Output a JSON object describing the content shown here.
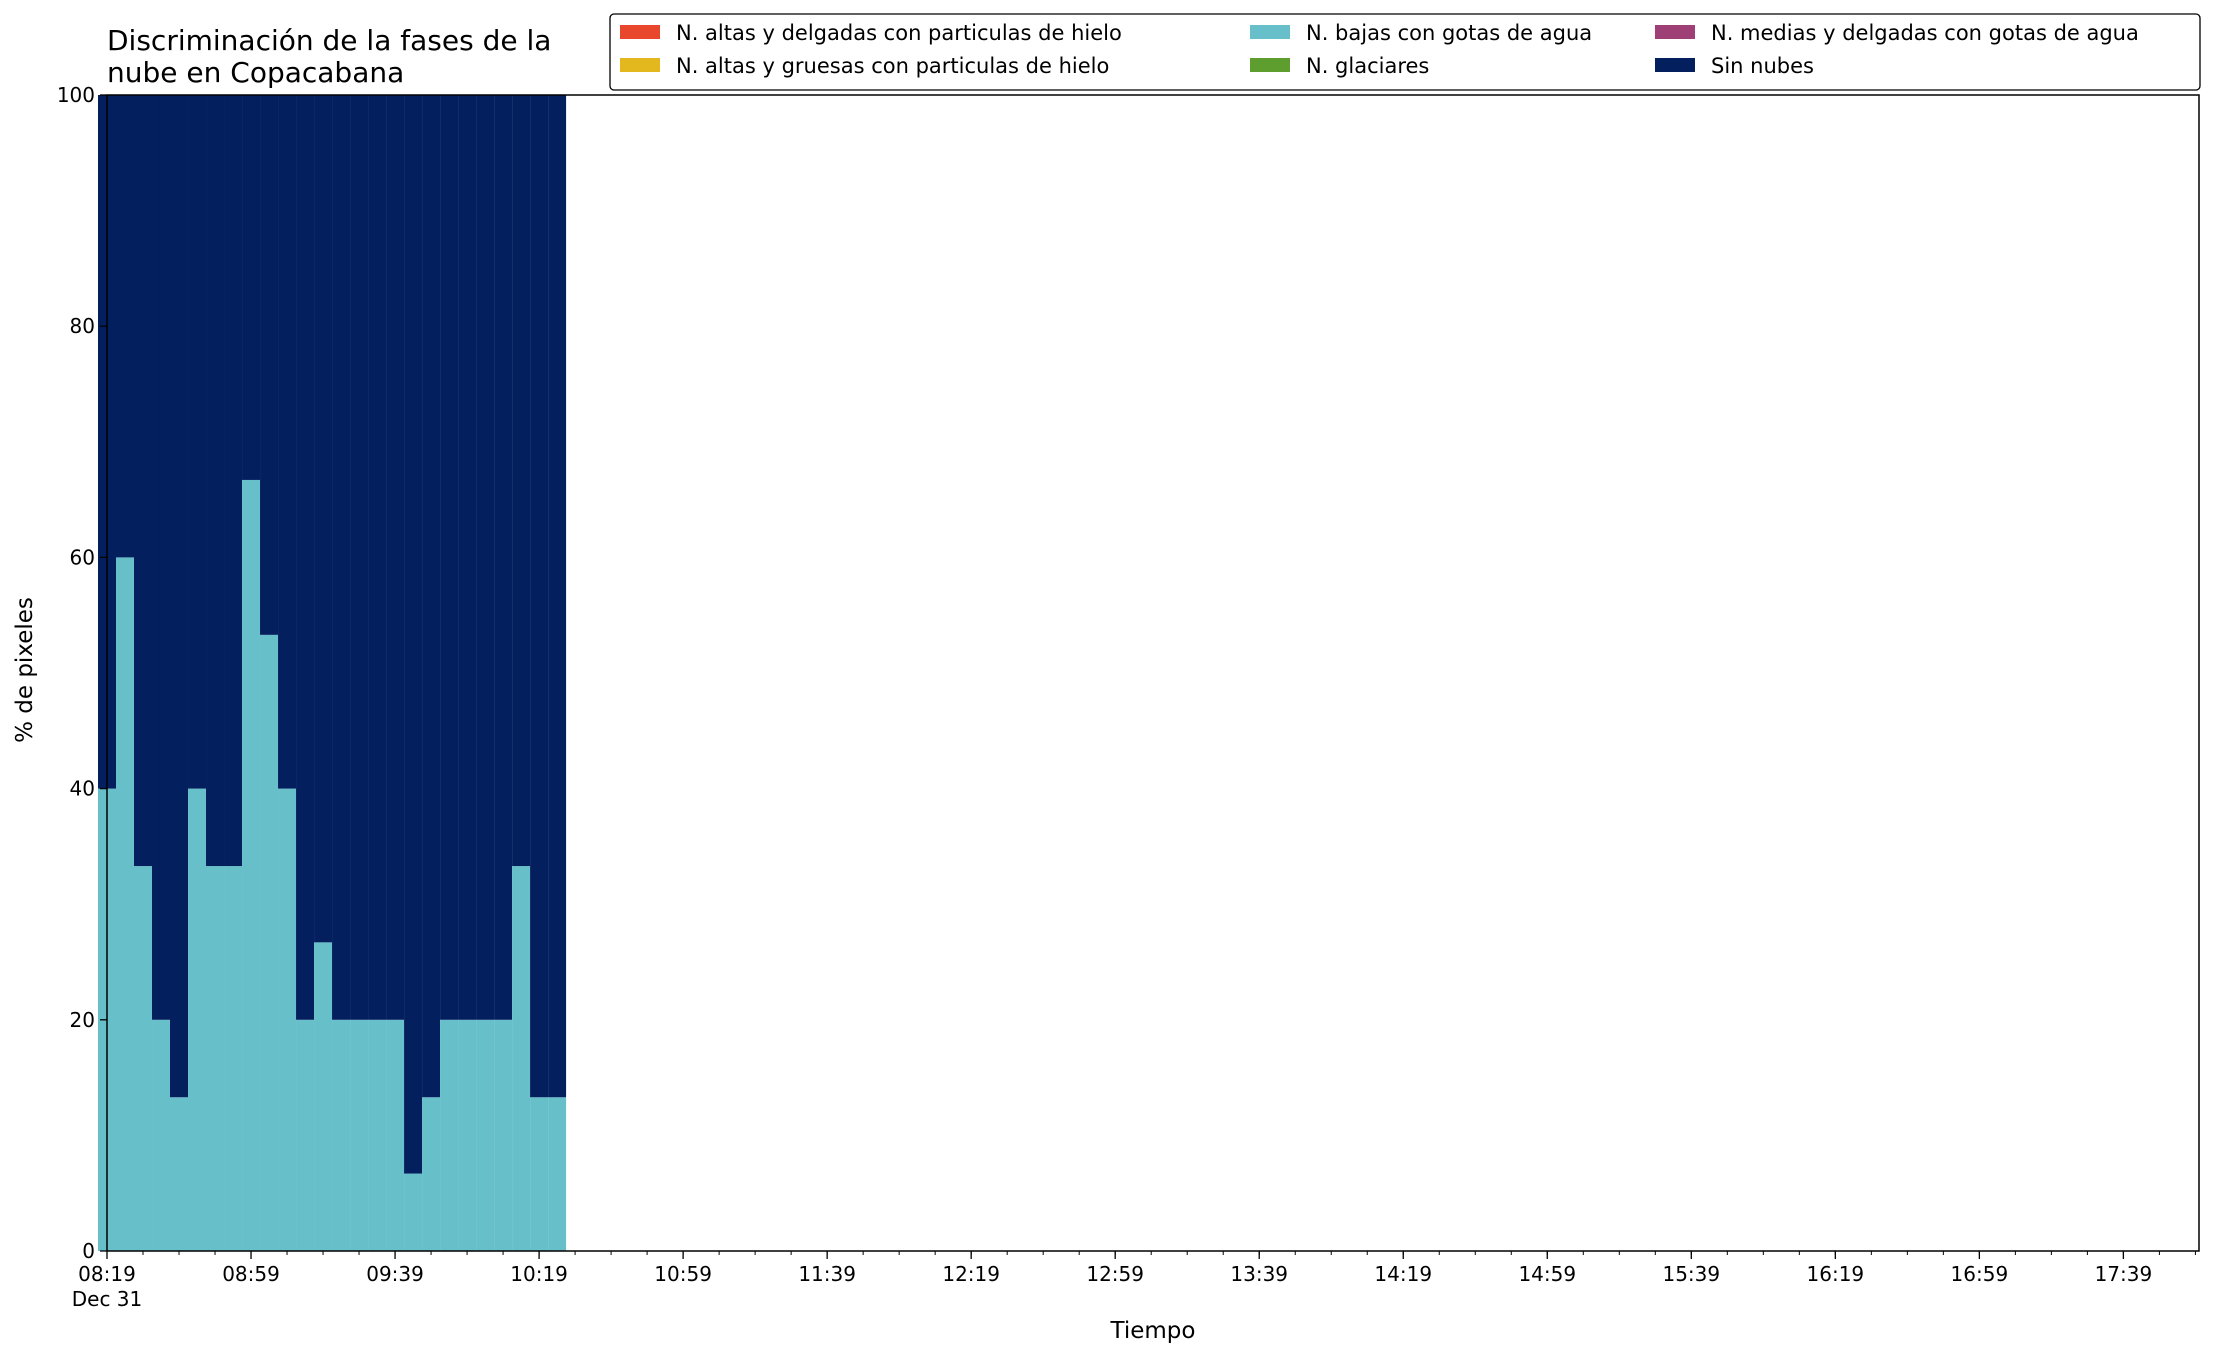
{
  "chart_data": {
    "type": "bar",
    "stacked": true,
    "title": "Discriminación de la fases de la\nnube en Copacabana",
    "xlabel": "Tiempo",
    "ylabel": "% de pixeles",
    "ylim": [
      0,
      100
    ],
    "yticks": [
      "0",
      "20",
      "40",
      "60",
      "80",
      "100"
    ],
    "xlim": [
      "08:19",
      "18:00"
    ],
    "xtick_labels": [
      "08:19",
      "08:59",
      "09:39",
      "10:19",
      "10:59",
      "11:39",
      "12:19",
      "12:59",
      "13:39",
      "14:19",
      "14:59",
      "15:39",
      "16:19",
      "16:59",
      "17:39"
    ],
    "xtick_date_label": "Dec 31",
    "minor_tick_interval_minutes": 10,
    "grid": false,
    "legend_position": "top-right",
    "x": [
      "08:19",
      "08:24",
      "08:29",
      "08:34",
      "08:39",
      "08:44",
      "08:49",
      "08:54",
      "08:59",
      "09:04",
      "09:09",
      "09:14",
      "09:19",
      "09:24",
      "09:29",
      "09:34",
      "09:39",
      "09:44",
      "09:49",
      "09:54",
      "09:59",
      "10:04",
      "10:09",
      "10:14",
      "10:19",
      "10:24"
    ],
    "series": [
      {
        "name": "N. altas y delgadas con particulas de hielo",
        "color": "#e8472b",
        "values": [
          0,
          0,
          0,
          0,
          0,
          0,
          0,
          0,
          0,
          0,
          0,
          0,
          0,
          0,
          0,
          0,
          0,
          0,
          0,
          0,
          0,
          0,
          0,
          0,
          0,
          0
        ]
      },
      {
        "name": "N. altas y gruesas con particulas de hielo",
        "color": "#e3b81f",
        "values": [
          0,
          0,
          0,
          0,
          0,
          0,
          0,
          0,
          0,
          0,
          0,
          0,
          0,
          0,
          0,
          0,
          0,
          0,
          0,
          0,
          0,
          0,
          0,
          0,
          0,
          0
        ]
      },
      {
        "name": "N. bajas con gotas de agua",
        "color": "#67bfca",
        "values": [
          40,
          60,
          33.3,
          20,
          13.3,
          40,
          33.3,
          33.3,
          66.7,
          53.3,
          40,
          20,
          26.7,
          20,
          20,
          20,
          20,
          6.7,
          13.3,
          20,
          20,
          20,
          20,
          33.3,
          13.3,
          13.3
        ]
      },
      {
        "name": "N. glaciares",
        "color": "#5e9e2f",
        "values": [
          0,
          0,
          0,
          0,
          0,
          0,
          0,
          0,
          0,
          0,
          0,
          0,
          0,
          0,
          0,
          0,
          0,
          0,
          0,
          0,
          0,
          0,
          0,
          0,
          0,
          0
        ]
      },
      {
        "name": "N. medias y delgadas con gotas de agua",
        "color": "#9e3f76",
        "values": [
          0,
          0,
          0,
          0,
          0,
          0,
          0,
          0,
          0,
          0,
          0,
          0,
          0,
          0,
          0,
          0,
          0,
          0,
          0,
          0,
          0,
          0,
          0,
          0,
          0,
          0
        ]
      },
      {
        "name": "Sin nubes",
        "color": "#041f5e",
        "values": [
          60,
          40,
          66.7,
          80,
          86.7,
          60,
          66.7,
          66.7,
          33.3,
          46.7,
          60,
          80,
          73.3,
          80,
          80,
          80,
          80,
          93.3,
          86.7,
          80,
          80,
          80,
          80,
          66.7,
          86.7,
          86.7
        ]
      }
    ],
    "legend_order": [
      "N. altas y delgadas con particulas de hielo",
      "N. altas y gruesas con particulas de hielo",
      "N. bajas con gotas de agua",
      "N. glaciares",
      "N. medias y delgadas con gotas de agua",
      "Sin nubes"
    ]
  }
}
